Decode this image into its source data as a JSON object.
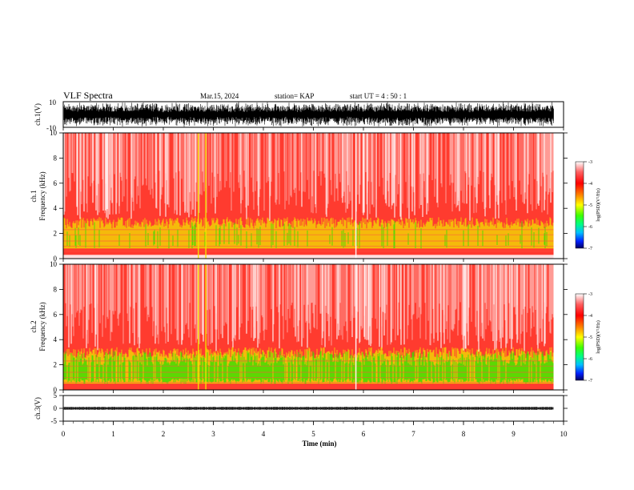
{
  "header": {
    "title": "VLF Spectra",
    "date": "Mar.15, 2024",
    "station": "station= KAP",
    "start": "start  UT =   4 : 50 : 1"
  },
  "colors": {
    "background": "#ffffff",
    "axis": "#000000",
    "spectrogram_base": "#ff3b2f",
    "spectrogram_light": "#ffffff",
    "band_yellow": "#f2e600",
    "band_green": "#36e000",
    "colormap": [
      "#000060",
      "#0020ff",
      "#00c0ff",
      "#00ff80",
      "#40ff00",
      "#ffff00",
      "#ff8000",
      "#ff0000",
      "#ff6060",
      "#ffffff"
    ]
  },
  "chart_data": [
    {
      "type": "line",
      "name": "ch1-waveform",
      "ylabel": "ch.1(V)",
      "ylim": [
        -10,
        10
      ],
      "yticks": [
        "10",
        "-10"
      ],
      "xlim": [
        0,
        10
      ],
      "amplitude_range": [
        -10,
        10
      ]
    },
    {
      "type": "heatmap",
      "name": "ch1-spectrogram",
      "ylabel": "ch.1\nFrequency (kHz)",
      "ylabel_lines": [
        "ch.1",
        "Frequency  (kHz)"
      ],
      "ylim": [
        0,
        10
      ],
      "yticks": [
        "0",
        "2",
        "4",
        "6",
        "8",
        "10"
      ],
      "xlim": [
        0,
        10
      ],
      "data_end_min": 9.8,
      "gap_band_khz": [
        0.0,
        0.3
      ],
      "bright_bands_khz": [
        [
          0.8,
          1.3
        ],
        [
          1.3,
          3.3
        ]
      ],
      "notable_lines_min": [
        2.7,
        2.85,
        5.85
      ],
      "colorbar": {
        "label": "log(PSD)(V²/Hz)",
        "range": [
          -7,
          -3
        ],
        "ticks": [
          "-3",
          "-4",
          "-5",
          "-6",
          "-7"
        ]
      }
    },
    {
      "type": "heatmap",
      "name": "ch2-spectrogram",
      "ylabel_lines": [
        "ch.2",
        "Frequency  (kHz)"
      ],
      "ylim": [
        0,
        10
      ],
      "yticks": [
        "0",
        "2",
        "4",
        "6",
        "8",
        "10"
      ],
      "xlim": [
        0,
        10
      ],
      "data_end_min": 9.8,
      "bright_bands_khz": [
        [
          0.5,
          1.5
        ],
        [
          1.5,
          3.4
        ]
      ],
      "notable_lines_min": [
        2.7,
        2.85,
        5.85
      ],
      "colorbar": {
        "label": "log(PSD)(V²/Hz)",
        "range": [
          -7,
          -3
        ],
        "ticks": [
          "-3",
          "-4",
          "-5",
          "-6",
          "-7"
        ]
      }
    },
    {
      "type": "line",
      "name": "ch3-waveform",
      "ylabel": "ch.3(V)",
      "ylim": [
        -5,
        5
      ],
      "yticks": [
        "5",
        "0",
        "-5"
      ],
      "xlim": [
        0,
        10
      ],
      "signal_band_v": [
        -0.6,
        0.6
      ]
    }
  ],
  "x_axis": {
    "xlabel": "Time  (min)",
    "ticks": [
      "0",
      "1",
      "2",
      "3",
      "4",
      "5",
      "6",
      "7",
      "8",
      "9",
      "10"
    ]
  }
}
